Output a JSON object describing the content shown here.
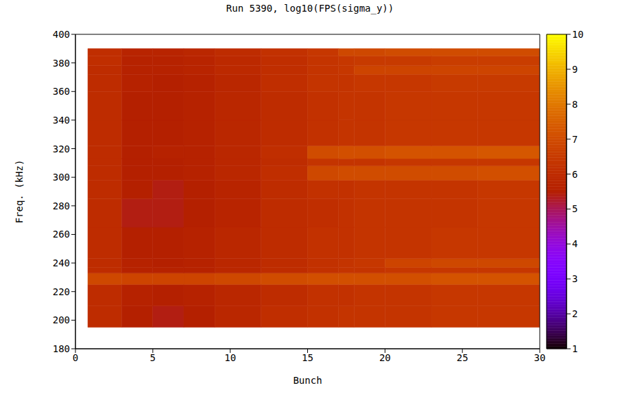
{
  "chart_data": {
    "type": "heatmap",
    "title": "Run 5390, log10(FPS(sigma_y))",
    "x_label": "Bunch",
    "y_label": "Freq. (kHz)",
    "xlim": [
      0,
      30
    ],
    "ylim": [
      180,
      400
    ],
    "xticks": [
      0,
      5,
      10,
      15,
      20,
      25,
      30
    ],
    "yticks": [
      180,
      200,
      220,
      240,
      260,
      280,
      300,
      320,
      340,
      360,
      380,
      400
    ],
    "x_edges": [
      0.8,
      3,
      5,
      7,
      9,
      12,
      15,
      17,
      18,
      20,
      23,
      26,
      30
    ],
    "y_edges": [
      195,
      210,
      225,
      233,
      237,
      243,
      265,
      285,
      298,
      308,
      313,
      322,
      340,
      360,
      372,
      378,
      385,
      390
    ],
    "cells": [
      [
        6.0,
        5.5,
        5.4,
        5.5,
        5.8,
        6.1,
        6.2,
        6.3,
        6.3,
        6.3,
        6.4,
        6.4
      ],
      [
        6.0,
        5.6,
        5.5,
        5.6,
        5.8,
        6.0,
        6.2,
        6.2,
        6.3,
        6.3,
        6.4,
        6.4
      ],
      [
        6.9,
        6.8,
        6.8,
        6.8,
        6.9,
        7.0,
        7.1,
        7.1,
        7.1,
        7.1,
        7.2,
        7.2
      ],
      [
        6.0,
        5.6,
        5.6,
        5.6,
        5.8,
        6.0,
        6.2,
        6.3,
        6.3,
        6.4,
        6.4,
        6.4
      ],
      [
        6.0,
        5.6,
        5.5,
        5.6,
        5.8,
        6.0,
        6.2,
        6.3,
        6.4,
        6.8,
        6.9,
        6.9
      ],
      [
        6.0,
        5.5,
        5.5,
        5.6,
        5.8,
        6.0,
        6.2,
        6.2,
        6.3,
        6.3,
        6.4,
        6.4
      ],
      [
        6.0,
        5.4,
        5.4,
        5.5,
        5.7,
        6.0,
        6.1,
        6.2,
        6.3,
        6.3,
        6.3,
        6.4
      ],
      [
        6.0,
        5.5,
        5.4,
        5.5,
        5.7,
        6.0,
        6.2,
        6.2,
        6.3,
        6.3,
        6.3,
        6.4
      ],
      [
        6.0,
        5.5,
        5.5,
        5.6,
        5.8,
        6.1,
        6.9,
        7.0,
        7.0,
        7.0,
        7.0,
        7.1
      ],
      [
        6.0,
        5.5,
        5.5,
        5.6,
        5.8,
        6.0,
        6.3,
        6.3,
        6.3,
        6.4,
        6.4,
        6.4
      ],
      [
        6.0,
        5.5,
        5.6,
        5.6,
        5.8,
        6.1,
        7.0,
        7.1,
        7.1,
        7.2,
        7.2,
        7.3
      ],
      [
        6.0,
        5.5,
        5.5,
        5.6,
        5.8,
        6.0,
        6.2,
        6.3,
        6.3,
        6.4,
        6.4,
        6.4
      ],
      [
        6.0,
        5.5,
        5.5,
        5.6,
        5.8,
        6.0,
        6.2,
        6.3,
        6.3,
        6.4,
        6.4,
        6.4
      ],
      [
        6.0,
        5.6,
        5.5,
        5.6,
        5.8,
        6.1,
        6.3,
        6.3,
        6.4,
        6.4,
        6.5,
        6.5
      ],
      [
        6.0,
        5.6,
        5.6,
        5.7,
        5.9,
        6.1,
        6.3,
        6.4,
        6.8,
        6.8,
        6.8,
        6.8
      ],
      [
        6.1,
        5.6,
        5.6,
        5.7,
        5.9,
        6.1,
        6.3,
        6.4,
        6.5,
        6.5,
        6.6,
        6.6
      ],
      [
        6.1,
        5.7,
        5.7,
        5.8,
        6.0,
        6.2,
        6.4,
        6.9,
        6.9,
        7.0,
        7.0,
        7.0
      ]
    ],
    "colorbar": {
      "range": [
        1,
        10
      ],
      "ticks": [
        1,
        2,
        3,
        4,
        5,
        6,
        7,
        8,
        9,
        10
      ]
    }
  }
}
